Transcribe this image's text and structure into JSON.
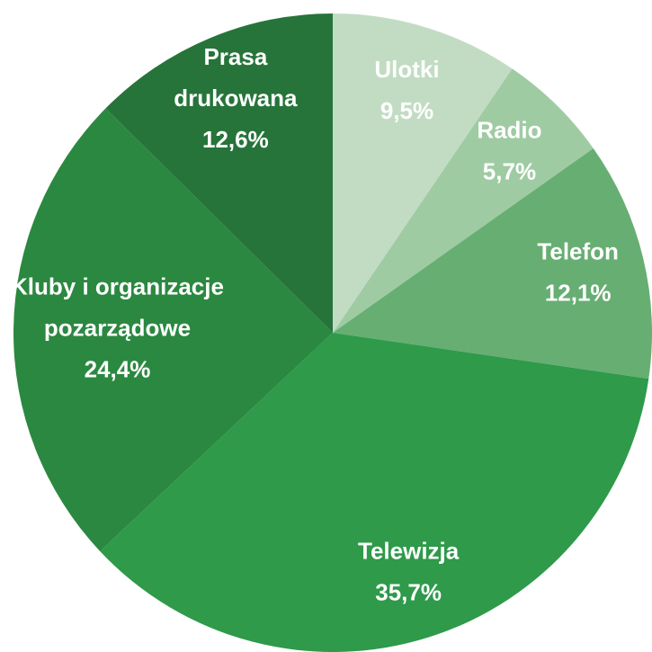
{
  "chart_data": {
    "type": "pie",
    "categories": [
      [
        "Ulotki"
      ],
      [
        "Radio"
      ],
      [
        "Telefon"
      ],
      [
        "Telewizja"
      ],
      [
        "Kluby i organizacje",
        "pozarządowe"
      ],
      [
        "Prasa",
        "drukowana"
      ]
    ],
    "values": [
      9.5,
      5.7,
      12.1,
      35.7,
      24.4,
      12.6
    ],
    "value_labels": [
      "9,5%",
      "5,7%",
      "12,1%",
      "35,7%",
      "24,4%",
      "12,6%"
    ],
    "colors": [
      "#c2dcc4",
      "#9fcba3",
      "#67ae73",
      "#2e9a4a",
      "#2b8840",
      "#26743a"
    ]
  }
}
